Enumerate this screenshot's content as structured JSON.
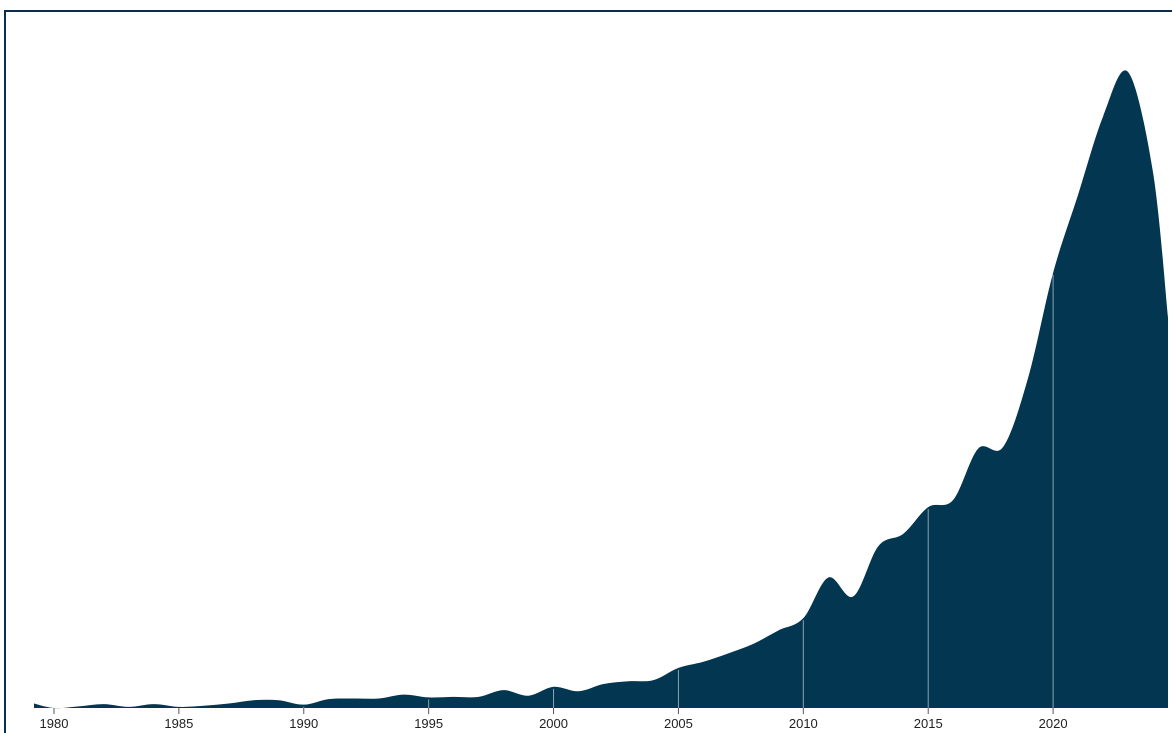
{
  "chart_data": {
    "type": "area",
    "title": "",
    "xlabel": "",
    "ylabel": "",
    "grid": false,
    "legend": "none",
    "colors": {
      "fill": "#023651",
      "year_divider": "#ffffff",
      "frame": "#0b2e4a"
    },
    "x_tick_labels": [
      "1980",
      "1985",
      "1990",
      "1995",
      "2000",
      "2005",
      "2010",
      "2015",
      "2020"
    ],
    "xlim": [
      1979.2,
      2024.6
    ],
    "ylim": [
      0,
      100
    ],
    "x": [
      1979.2,
      1980,
      1981,
      1982,
      1983,
      1984,
      1985,
      1986,
      1987,
      1988,
      1989,
      1990,
      1991,
      1992,
      1993,
      1994,
      1995,
      1996,
      1997,
      1998,
      1999,
      2000,
      2001,
      2002,
      2003,
      2004,
      2005,
      2006,
      2007,
      2008,
      2009,
      2010,
      2011,
      2012,
      2013,
      2014,
      2015,
      2016,
      2017,
      2018,
      2019,
      2020,
      2021,
      2022,
      2023,
      2024,
      2024.6
    ],
    "values": [
      0.8,
      0.0,
      0.3,
      0.7,
      0.2,
      0.7,
      0.2,
      0.4,
      0.8,
      1.4,
      1.4,
      0.6,
      1.6,
      1.7,
      1.7,
      2.4,
      1.9,
      2.0,
      2.0,
      3.2,
      2.2,
      3.8,
      3.0,
      4.3,
      4.8,
      5.0,
      7.2,
      8.3,
      9.8,
      11.5,
      13.9,
      16.1,
      23.4,
      20.0,
      29.0,
      31.2,
      36.0,
      37.3,
      46.5,
      46.8,
      59.2,
      78.0,
      92.0,
      106.0,
      114.0,
      96.0,
      70.0
    ]
  }
}
